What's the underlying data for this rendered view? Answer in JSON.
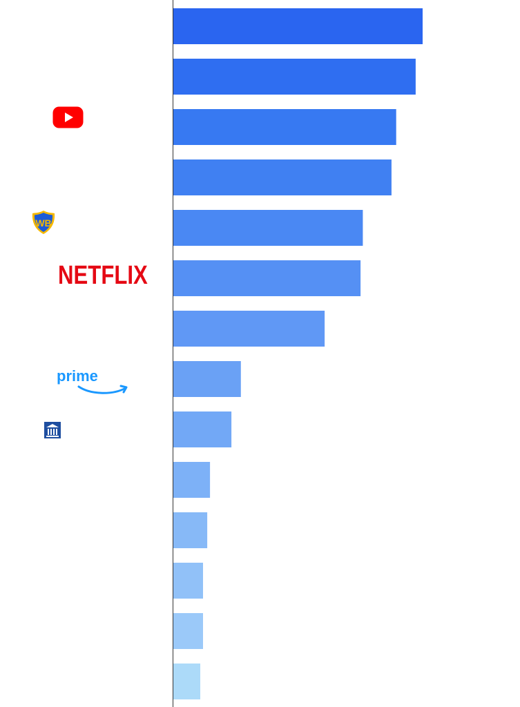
{
  "chart_data": {
    "type": "bar",
    "orientation": "horizontal",
    "categories": [
      "",
      "",
      "YouTube",
      "",
      "Warner Bros.",
      "Netflix",
      "",
      "Prime Video",
      "",
      "",
      "",
      "",
      "",
      ""
    ],
    "values": [
      100,
      97.2,
      89.4,
      87.5,
      76.0,
      75.1,
      60.7,
      27.1,
      23.3,
      14.7,
      13.6,
      11.9,
      11.9,
      10.8
    ],
    "xlim": [
      0,
      100
    ],
    "xlabel": "",
    "ylabel": "",
    "title": "",
    "grid": false,
    "legend": "none",
    "colors": [
      "#2a65f0",
      "#2f6ef1",
      "#3779f2",
      "#4080f2",
      "#4a88f3",
      "#5590f4",
      "#6098f5",
      "#6aa1f5",
      "#72a8f6",
      "#7db1f7",
      "#87b9f7",
      "#91c1f8",
      "#9bc9f9",
      "#acdaf9"
    ]
  },
  "logos": {
    "youtube": {
      "name": "youtube-logo",
      "color": "#ff0000"
    },
    "warner": {
      "name": "warner-bros-logo",
      "color": "#1e5bd6",
      "accent": "#f5b800"
    },
    "netflix": {
      "text": "NETFLIX",
      "color": "#e50914"
    },
    "prime": {
      "text": "prime",
      "color": "#1a98ff"
    },
    "paramount": {
      "name": "building-logo",
      "color": "#1e4ea0"
    }
  }
}
